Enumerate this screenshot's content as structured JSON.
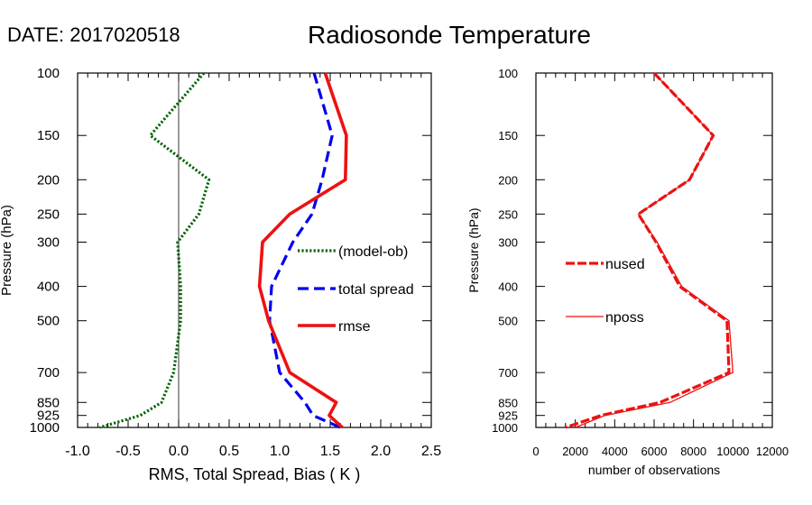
{
  "header": {
    "date_label": "DATE: 2017020518",
    "title": "Radiosonde Temperature"
  },
  "chart_data": [
    {
      "type": "line",
      "xlabel": "RMS, Total Spread, Bias ( K )",
      "ylabel": "Pressure (hPa)",
      "xlim": [
        -1.0,
        2.5
      ],
      "ylim": [
        1000,
        100
      ],
      "y_scale": "log",
      "x_ticks": [
        "-1.0",
        "-0.5",
        "0.0",
        "0.5",
        "1.0",
        "1.5",
        "2.0",
        "2.5"
      ],
      "y_ticks": [
        "100",
        "150",
        "200",
        "250",
        "300",
        "400",
        "500",
        "700",
        "850",
        "925",
        "1000"
      ],
      "zero_line": true,
      "grid": false,
      "legend": "center-right",
      "series": [
        {
          "name": "(model-ob)",
          "style": "dotted",
          "color": "#006400",
          "x": [
            0.25,
            -0.28,
            0.3,
            0.2,
            -0.01,
            0.02,
            0.02,
            -0.05,
            -0.17,
            -0.38,
            -0.78
          ],
          "y": [
            100,
            150,
            200,
            250,
            300,
            400,
            500,
            700,
            850,
            925,
            1000
          ]
        },
        {
          "name": "total spread",
          "style": "dashed",
          "color": "#0000ee",
          "x": [
            1.34,
            1.52,
            1.42,
            1.32,
            1.13,
            0.92,
            0.9,
            1.0,
            1.25,
            1.33,
            1.6
          ],
          "y": [
            100,
            150,
            200,
            250,
            300,
            400,
            500,
            700,
            850,
            925,
            1000
          ]
        },
        {
          "name": "rmse",
          "style": "solid",
          "color": "#ee1111",
          "x": [
            1.45,
            1.66,
            1.65,
            1.1,
            0.83,
            0.8,
            0.89,
            1.1,
            1.56,
            1.49,
            1.62
          ],
          "y": [
            100,
            150,
            200,
            250,
            300,
            400,
            500,
            700,
            850,
            925,
            1000
          ]
        }
      ]
    },
    {
      "type": "line",
      "xlabel": "number of observations",
      "ylabel": "Pressure (hPa)",
      "xlim": [
        0,
        12000
      ],
      "ylim": [
        1000,
        100
      ],
      "y_scale": "log",
      "x_ticks": [
        "0",
        "2000",
        "4000",
        "6000",
        "8000",
        "10000",
        "12000"
      ],
      "y_ticks": [
        "100",
        "150",
        "200",
        "250",
        "300",
        "400",
        "500",
        "700",
        "850",
        "925",
        "1000"
      ],
      "grid": false,
      "legend": "center-left",
      "series": [
        {
          "name": "nused",
          "style": "dashed-thick",
          "color": "#ee1111",
          "x": [
            6000,
            9000,
            7800,
            5200,
            6100,
            7300,
            9700,
            9800,
            6300,
            3300,
            1500
          ],
          "y": [
            100,
            150,
            200,
            250,
            300,
            400,
            500,
            700,
            850,
            925,
            1000
          ]
        },
        {
          "name": "nposs",
          "style": "solid-thin",
          "color": "#ee1111",
          "x": [
            6000,
            9000,
            7800,
            5200,
            6150,
            7400,
            9800,
            10000,
            6800,
            3500,
            2000
          ],
          "y": [
            100,
            150,
            200,
            250,
            300,
            400,
            500,
            700,
            850,
            925,
            1000
          ]
        }
      ]
    }
  ]
}
